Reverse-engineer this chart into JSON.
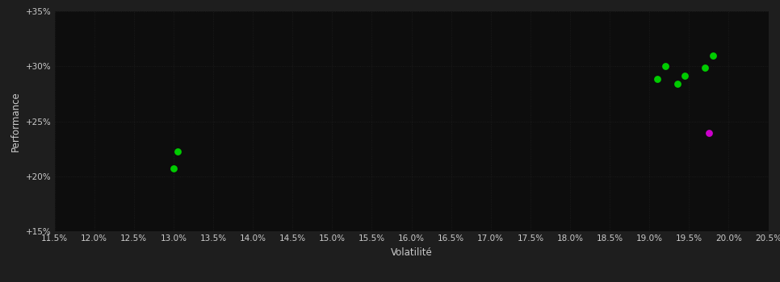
{
  "background_color": "#1e1e1e",
  "plot_bg_color": "#0d0d0d",
  "grid_color": "#2a2a2a",
  "xlabel": "Volatilité",
  "ylabel": "Performance",
  "xlim": [
    0.115,
    0.205
  ],
  "ylim": [
    0.15,
    0.35
  ],
  "xticks": [
    0.115,
    0.12,
    0.125,
    0.13,
    0.135,
    0.14,
    0.145,
    0.15,
    0.155,
    0.16,
    0.165,
    0.17,
    0.175,
    0.18,
    0.185,
    0.19,
    0.195,
    0.2,
    0.205
  ],
  "yticks": [
    0.15,
    0.2,
    0.25,
    0.3,
    0.35
  ],
  "green_points": [
    [
      0.1305,
      0.2225
    ],
    [
      0.13,
      0.2075
    ],
    [
      0.191,
      0.2885
    ],
    [
      0.192,
      0.3005
    ],
    [
      0.1935,
      0.284
    ],
    [
      0.1945,
      0.2915
    ],
    [
      0.197,
      0.2985
    ],
    [
      0.198,
      0.3095
    ]
  ],
  "magenta_points": [
    [
      0.1975,
      0.2395
    ]
  ],
  "green_color": "#00cc00",
  "magenta_color": "#cc00cc",
  "tick_color": "#cccccc",
  "label_color": "#cccccc",
  "grid_linestyle": ":",
  "grid_linewidth": 0.6,
  "grid_alpha": 0.6,
  "marker_size": 40,
  "tick_fontsize": 7.5,
  "label_fontsize": 8.5
}
